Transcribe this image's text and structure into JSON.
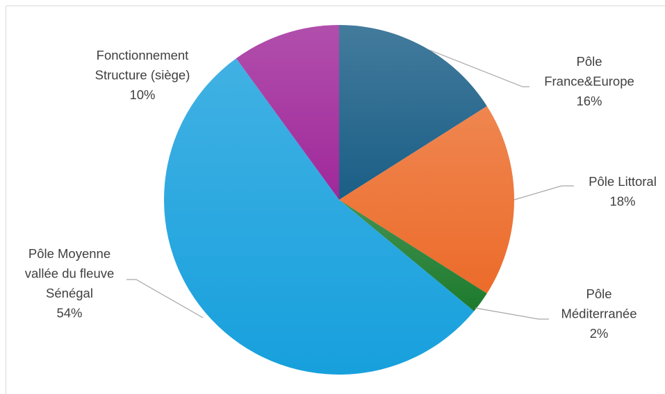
{
  "chart_data": {
    "type": "pie",
    "title": "",
    "start_angle_deg": 0,
    "direction": "clockwise",
    "slices": [
      {
        "label_lines": [
          "Pôle",
          "France&Europe"
        ],
        "value_label": "16%",
        "value": 16,
        "color": "#1a5e86"
      },
      {
        "label_lines": [
          "Pôle Littoral"
        ],
        "value_label": "18%",
        "value": 18,
        "color": "#ec6b2a"
      },
      {
        "label_lines": [
          "Pôle",
          "Méditerranée"
        ],
        "value_label": "2%",
        "value": 2,
        "color": "#1c7a2c"
      },
      {
        "label_lines": [
          "Pôle Moyenne",
          "vallée du fleuve",
          "Sénégal"
        ],
        "value_label": "54%",
        "value": 54,
        "color": "#17a0dd"
      },
      {
        "label_lines": [
          "Fonctionnement",
          "Structure (siège)"
        ],
        "value_label": "10%",
        "value": 10,
        "color": "#a0289a"
      }
    ],
    "data_labels": "outside-with-leader-lines"
  }
}
